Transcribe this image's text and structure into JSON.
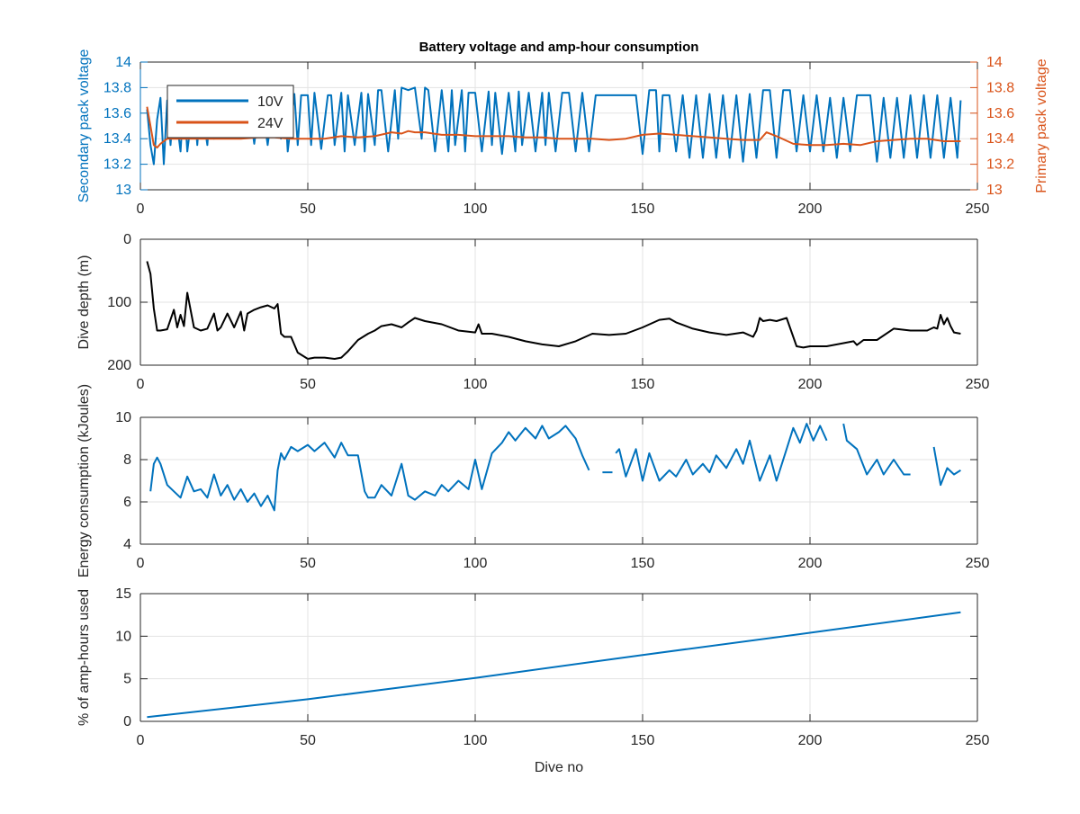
{
  "figure": {
    "title": "Battery voltage and amp-hour consumption"
  },
  "colors": {
    "blue": "#0072BD",
    "orange": "#D95319",
    "black": "#000000",
    "grid": "#e3e3e3",
    "axis": "#262626"
  },
  "chart_data": [
    {
      "id": "voltage",
      "type": "line",
      "title": "Battery voltage and amp-hour consumption",
      "xlabel": "",
      "ylabel": "Secondary pack voltage",
      "ylabel_right": "Primary pack voltage",
      "xlim": [
        0,
        250
      ],
      "ylim": [
        13,
        14
      ],
      "ylim_right": [
        13,
        14
      ],
      "xticks": [
        0,
        50,
        100,
        150,
        200,
        250
      ],
      "yticks": [
        13,
        13.2,
        13.4,
        13.6,
        13.8,
        14
      ],
      "ytick_labels": [
        "13",
        "13.2",
        "13.4",
        "13.6",
        "13.8",
        "14"
      ],
      "yticks_right": [
        13,
        13.2,
        13.4,
        13.6,
        13.8,
        14
      ],
      "ytick_labels_right": [
        "13",
        "13.2",
        "13.4",
        "13.6",
        "13.8",
        "14"
      ],
      "grid": true,
      "legend": "top-left",
      "series": [
        {
          "name": "10V",
          "axis": "left",
          "color": "#0072BD",
          "x": [
            2,
            3,
            4,
            5,
            6,
            7,
            8,
            9,
            10,
            12,
            13,
            14,
            16,
            17,
            18,
            20,
            21,
            22,
            24,
            26,
            27,
            28,
            30,
            32,
            34,
            36,
            38,
            40,
            42,
            43,
            44,
            46,
            47,
            48,
            50,
            51,
            52,
            54,
            56,
            57,
            58,
            60,
            61,
            62,
            64,
            66,
            67,
            68,
            70,
            71,
            72,
            74,
            76,
            77,
            78,
            80,
            82,
            84,
            85,
            86,
            88,
            90,
            92,
            93,
            94,
            96,
            97,
            98,
            100,
            102,
            104,
            105,
            106,
            108,
            110,
            112,
            113,
            114,
            116,
            118,
            120,
            121,
            122,
            124,
            126,
            128,
            130,
            132,
            134,
            136,
            140,
            144,
            148,
            150,
            152,
            154,
            155,
            156,
            158,
            160,
            162,
            164,
            166,
            168,
            170,
            172,
            174,
            176,
            178,
            180,
            182,
            184,
            186,
            188,
            190,
            192,
            194,
            196,
            198,
            200,
            202,
            204,
            206,
            208,
            210,
            212,
            214,
            216,
            218,
            220,
            222,
            224,
            226,
            228,
            230,
            232,
            234,
            236,
            238,
            240,
            242,
            244,
            245
          ],
          "values": [
            13.63,
            13.35,
            13.2,
            13.55,
            13.72,
            13.2,
            13.7,
            13.35,
            13.72,
            13.3,
            13.74,
            13.3,
            13.72,
            13.35,
            13.72,
            13.35,
            13.74,
            13.4,
            13.74,
            13.74,
            13.74,
            13.74,
            13.74,
            13.75,
            13.36,
            13.74,
            13.35,
            13.74,
            13.4,
            13.75,
            13.3,
            13.75,
            13.35,
            13.74,
            13.74,
            13.35,
            13.76,
            13.32,
            13.74,
            13.74,
            13.35,
            13.76,
            13.3,
            13.74,
            13.35,
            13.76,
            13.3,
            13.75,
            13.35,
            13.78,
            13.78,
            13.3,
            13.78,
            13.4,
            13.8,
            13.78,
            13.8,
            13.4,
            13.8,
            13.78,
            13.3,
            13.78,
            13.3,
            13.78,
            13.35,
            13.78,
            13.3,
            13.76,
            13.76,
            13.3,
            13.77,
            13.35,
            13.76,
            13.28,
            13.76,
            13.3,
            13.77,
            13.35,
            13.76,
            13.3,
            13.76,
            13.35,
            13.76,
            13.3,
            13.76,
            13.76,
            13.3,
            13.76,
            13.3,
            13.74,
            13.74,
            13.74,
            13.74,
            13.28,
            13.78,
            13.78,
            13.3,
            13.74,
            13.74,
            13.3,
            13.74,
            13.25,
            13.74,
            13.25,
            13.75,
            13.25,
            13.74,
            13.25,
            13.74,
            13.22,
            13.75,
            13.25,
            13.78,
            13.78,
            13.25,
            13.78,
            13.78,
            13.3,
            13.74,
            13.3,
            13.74,
            13.3,
            13.72,
            13.25,
            13.72,
            13.3,
            13.74,
            13.74,
            13.74,
            13.22,
            13.72,
            13.25,
            13.72,
            13.25,
            13.74,
            13.25,
            13.74,
            13.25,
            13.74,
            13.25,
            13.72,
            13.25,
            13.7
          ]
        },
        {
          "name": "24V",
          "axis": "right",
          "color": "#D95319",
          "x": [
            2,
            3,
            4,
            5,
            6,
            7,
            8,
            10,
            15,
            20,
            25,
            30,
            35,
            40,
            45,
            50,
            55,
            60,
            65,
            70,
            75,
            78,
            80,
            82,
            85,
            90,
            95,
            100,
            105,
            110,
            115,
            120,
            125,
            130,
            135,
            140,
            145,
            150,
            155,
            160,
            165,
            170,
            175,
            180,
            185,
            187,
            190,
            195,
            200,
            205,
            210,
            215,
            220,
            225,
            230,
            235,
            240,
            245
          ],
          "values": [
            13.65,
            13.5,
            13.35,
            13.33,
            13.36,
            13.38,
            13.4,
            13.4,
            13.4,
            13.4,
            13.4,
            13.4,
            13.41,
            13.41,
            13.4,
            13.4,
            13.4,
            13.42,
            13.41,
            13.42,
            13.45,
            13.44,
            13.46,
            13.45,
            13.45,
            13.43,
            13.43,
            13.42,
            13.42,
            13.42,
            13.41,
            13.41,
            13.4,
            13.4,
            13.4,
            13.39,
            13.4,
            13.43,
            13.44,
            13.43,
            13.42,
            13.41,
            13.4,
            13.39,
            13.39,
            13.45,
            13.42,
            13.36,
            13.35,
            13.35,
            13.36,
            13.35,
            13.38,
            13.39,
            13.4,
            13.4,
            13.38,
            13.38
          ]
        }
      ]
    },
    {
      "id": "depth",
      "type": "line",
      "xlabel": "",
      "ylabel": "Dive depth (m)",
      "xlim": [
        0,
        250
      ],
      "ylim": [
        0,
        200
      ],
      "y_reversed": true,
      "xticks": [
        0,
        50,
        100,
        150,
        200,
        250
      ],
      "yticks": [
        0,
        100,
        200
      ],
      "ytick_labels": [
        "0",
        "100",
        "200"
      ],
      "grid": true,
      "series": [
        {
          "color": "#000000",
          "x": [
            2,
            3,
            4,
            5,
            6,
            8,
            10,
            11,
            12,
            13,
            14,
            16,
            18,
            20,
            22,
            23,
            24,
            26,
            28,
            30,
            31,
            32,
            34,
            36,
            38,
            40,
            41,
            42,
            43,
            45,
            47,
            50,
            52,
            55,
            58,
            60,
            62,
            65,
            68,
            70,
            72,
            75,
            78,
            80,
            82,
            85,
            90,
            95,
            100,
            101,
            102,
            105,
            110,
            115,
            120,
            125,
            130,
            135,
            140,
            145,
            150,
            155,
            158,
            160,
            165,
            170,
            175,
            180,
            183,
            184,
            185,
            186,
            188,
            190,
            193,
            195,
            196,
            198,
            200,
            205,
            210,
            213,
            214,
            216,
            220,
            225,
            230,
            235,
            237,
            238,
            239,
            240,
            241,
            242,
            243,
            245
          ],
          "values": [
            35,
            55,
            110,
            145,
            145,
            143,
            112,
            140,
            120,
            138,
            85,
            140,
            145,
            142,
            118,
            145,
            140,
            118,
            140,
            115,
            145,
            118,
            112,
            108,
            105,
            110,
            103,
            150,
            155,
            155,
            180,
            190,
            188,
            188,
            190,
            188,
            178,
            160,
            150,
            145,
            138,
            135,
            140,
            132,
            125,
            130,
            135,
            145,
            148,
            135,
            150,
            150,
            155,
            162,
            167,
            170,
            162,
            150,
            152,
            150,
            140,
            128,
            126,
            132,
            142,
            148,
            152,
            148,
            155,
            145,
            125,
            130,
            128,
            130,
            125,
            155,
            170,
            172,
            170,
            170,
            165,
            162,
            168,
            160,
            160,
            142,
            145,
            145,
            140,
            142,
            120,
            135,
            125,
            138,
            148,
            150
          ]
        }
      ]
    },
    {
      "id": "energy",
      "type": "line",
      "xlabel": "",
      "ylabel": "Energy consumption (kJoules)",
      "xlim": [
        0,
        250
      ],
      "ylim": [
        4,
        10
      ],
      "xticks": [
        0,
        50,
        100,
        150,
        200,
        250
      ],
      "yticks": [
        4,
        6,
        8,
        10
      ],
      "ytick_labels": [
        "4",
        "6",
        "8",
        "10"
      ],
      "grid": true,
      "series": [
        {
          "color": "#0072BD",
          "x": [
            3,
            4,
            5,
            6,
            8,
            10,
            12,
            14,
            16,
            18,
            20,
            22,
            24,
            26,
            28,
            30,
            32,
            34,
            36,
            38,
            40,
            41,
            42,
            43,
            45,
            47,
            50,
            52,
            55,
            58,
            60,
            62,
            65,
            67,
            68,
            70,
            72,
            75,
            78,
            80,
            82,
            85,
            88,
            90,
            92,
            95,
            98,
            100,
            102,
            105,
            108,
            110,
            112,
            115,
            118,
            120,
            122,
            125,
            127,
            130,
            132,
            134,
            null,
            138,
            141,
            null,
            142,
            143,
            145,
            148,
            150,
            152,
            155,
            158,
            160,
            163,
            165,
            168,
            170,
            172,
            175,
            178,
            180,
            182,
            185,
            188,
            190,
            193,
            195,
            197,
            199,
            201,
            203,
            205,
            null,
            210,
            211,
            214,
            217,
            220,
            222,
            225,
            228,
            230,
            null,
            237,
            239,
            241,
            243,
            245
          ],
          "values": [
            6.5,
            7.8,
            8.1,
            7.8,
            6.8,
            6.5,
            6.2,
            7.2,
            6.5,
            6.6,
            6.2,
            7.3,
            6.3,
            6.8,
            6.1,
            6.6,
            6.0,
            6.4,
            5.8,
            6.3,
            5.6,
            7.5,
            8.3,
            8.0,
            8.6,
            8.4,
            8.7,
            8.4,
            8.8,
            8.1,
            8.8,
            8.2,
            8.2,
            6.5,
            6.2,
            6.2,
            6.8,
            6.3,
            7.8,
            6.3,
            6.1,
            6.5,
            6.3,
            6.8,
            6.5,
            7.0,
            6.6,
            8.0,
            6.6,
            8.3,
            8.8,
            9.3,
            8.9,
            9.5,
            9.0,
            9.6,
            9.0,
            9.3,
            9.6,
            9.0,
            8.2,
            7.5,
            null,
            7.4,
            7.4,
            null,
            8.3,
            8.5,
            7.2,
            8.5,
            7.0,
            8.3,
            7.0,
            7.5,
            7.2,
            8.0,
            7.3,
            7.8,
            7.4,
            8.2,
            7.6,
            8.5,
            7.8,
            8.9,
            7.0,
            8.2,
            7.0,
            8.5,
            9.5,
            8.8,
            9.7,
            8.9,
            9.6,
            8.9,
            null,
            9.7,
            8.9,
            8.5,
            7.3,
            8.0,
            7.3,
            8.0,
            7.3,
            7.3,
            null,
            8.6,
            6.8,
            7.6,
            7.3,
            7.5
          ]
        }
      ]
    },
    {
      "id": "amphours",
      "type": "line",
      "xlabel": "Dive no",
      "ylabel": "% of amp-hours used",
      "xlim": [
        0,
        250
      ],
      "ylim": [
        0,
        15
      ],
      "xticks": [
        0,
        50,
        100,
        150,
        200,
        250
      ],
      "yticks": [
        0,
        5,
        10,
        15
      ],
      "ytick_labels": [
        "0",
        "5",
        "10",
        "15"
      ],
      "grid": true,
      "series": [
        {
          "color": "#0072BD",
          "x": [
            2,
            50,
            100,
            150,
            200,
            245
          ],
          "values": [
            0.5,
            2.6,
            5.1,
            7.8,
            10.4,
            12.8
          ]
        }
      ]
    }
  ]
}
